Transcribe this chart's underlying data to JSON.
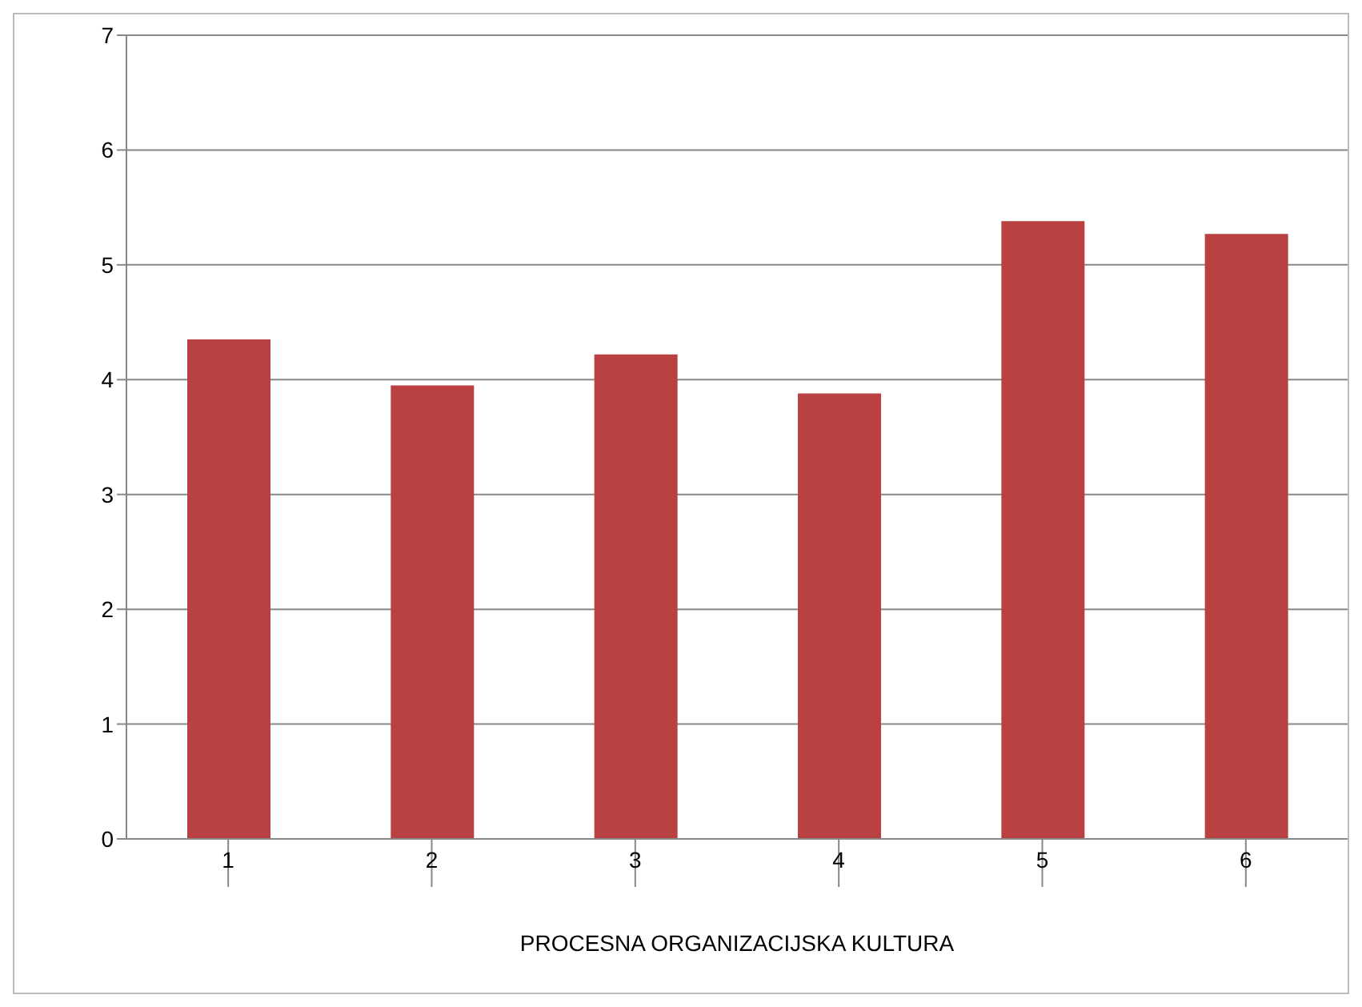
{
  "chart_data": {
    "type": "bar",
    "xlabel": "PROCESNA ORGANIZACIJSKA KULTURA",
    "categories": [
      "1",
      "2",
      "3",
      "4",
      "5",
      "6"
    ],
    "values": [
      4.35,
      3.95,
      4.22,
      3.88,
      5.38,
      5.27
    ],
    "color": "#b94141",
    "ylim": [
      0,
      7
    ],
    "yticks": [
      0,
      1,
      2,
      3,
      4,
      5,
      6,
      7
    ],
    "grid": "y",
    "legend": false
  }
}
